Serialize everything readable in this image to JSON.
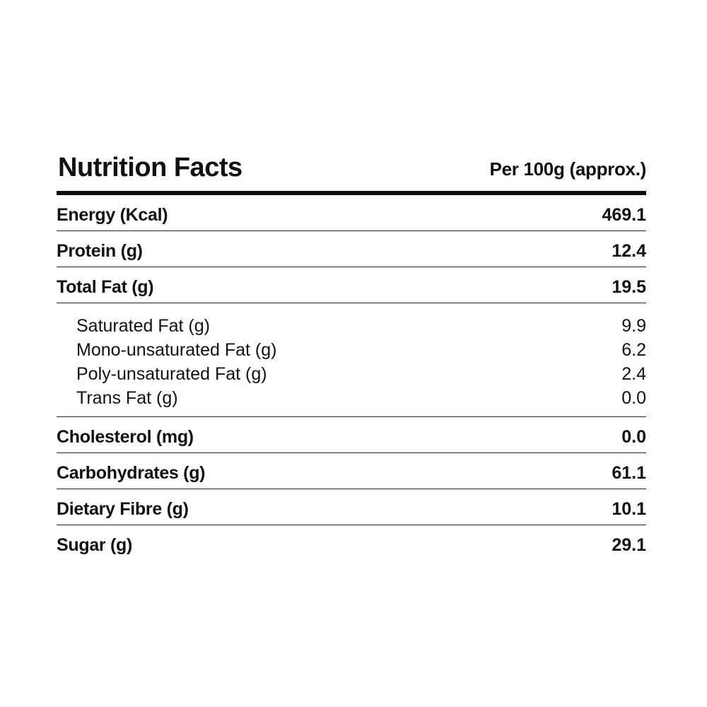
{
  "header": {
    "title": "Nutrition Facts",
    "per": "Per 100g (approx.)"
  },
  "rows_top": [
    {
      "label": "Energy (Kcal)",
      "value": "469.1"
    },
    {
      "label": "Protein (g)",
      "value": "12.4"
    },
    {
      "label": "Total Fat (g)",
      "value": "19.5"
    }
  ],
  "sub_rows": [
    {
      "label": "Saturated Fat (g)",
      "value": "9.9"
    },
    {
      "label": "Mono-unsaturated Fat (g)",
      "value": "6.2"
    },
    {
      "label": "Poly-unsaturated Fat (g)",
      "value": "2.4"
    },
    {
      "label": "Trans Fat (g)",
      "value": "0.0"
    }
  ],
  "rows_bottom": [
    {
      "label": "Cholesterol (mg)",
      "value": "0.0"
    },
    {
      "label": "Carbohydrates (g)",
      "value": "61.1"
    },
    {
      "label": "Dietary Fibre (g)",
      "value": "10.1"
    },
    {
      "label": "Sugar (g)",
      "value": "29.1"
    }
  ]
}
